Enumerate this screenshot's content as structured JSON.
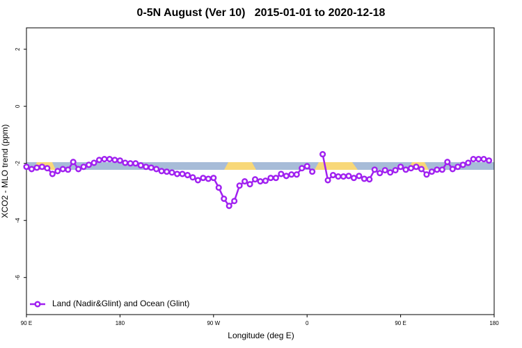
{
  "chart_data": {
    "type": "line",
    "title": "0-5N August (Ver 10)   2015-01-01 to 2020-12-18",
    "x_label": "Longitude (deg E)",
    "y_label": "XCO2 - MLO trend (ppm)",
    "xlim": [
      90,
      540
    ],
    "xticks": [
      {
        "value": 90,
        "label": "90 E"
      },
      180,
      {
        "value": 270,
        "label": "90 W"
      },
      {
        "value": 360,
        "label": "0"
      },
      {
        "value": 450,
        "label": "90 E"
      },
      {
        "value": 540,
        "label": "180"
      }
    ],
    "ylim": [
      -7.3,
      2.75
    ],
    "yticks": [
      2,
      0,
      -2,
      -4,
      -6
    ],
    "legend": "bottom-left",
    "x": [
      90,
      95,
      100,
      105,
      110,
      115,
      120,
      125,
      130,
      135,
      140,
      145,
      150,
      155,
      160,
      165,
      170,
      175,
      180,
      185,
      190,
      195,
      200,
      205,
      210,
      215,
      220,
      225,
      230,
      235,
      240,
      245,
      250,
      255,
      260,
      265,
      270,
      275,
      280,
      285,
      290,
      295,
      300,
      305,
      310,
      315,
      320,
      325,
      330,
      335,
      340,
      345,
      350,
      355,
      360,
      365,
      370,
      375,
      380,
      385,
      390,
      395,
      400,
      405,
      410,
      415,
      420,
      425,
      430,
      435,
      440,
      445,
      450,
      455,
      460,
      465,
      470,
      475,
      480,
      485,
      490,
      495,
      500,
      505,
      510,
      515,
      520,
      525,
      530,
      535
    ],
    "series": [
      {
        "name": "Land (Nadir&Glint) and Ocean (Glint)",
        "color": "#a020f0",
        "values": [
          -2.12,
          -2.2,
          -2.15,
          -2.12,
          -2.17,
          -2.37,
          -2.27,
          -2.2,
          -2.22,
          -1.95,
          -2.2,
          -2.12,
          -2.05,
          -1.98,
          -1.88,
          -1.85,
          -1.85,
          -1.88,
          -1.9,
          -1.98,
          -2.0,
          -2.0,
          -2.07,
          -2.12,
          -2.15,
          -2.2,
          -2.27,
          -2.29,
          -2.32,
          -2.37,
          -2.37,
          -2.41,
          -2.49,
          -2.59,
          -2.51,
          -2.54,
          -2.51,
          -2.85,
          -3.24,
          -3.49,
          -3.32,
          -2.78,
          -2.63,
          -2.73,
          -2.56,
          -2.63,
          -2.61,
          -2.51,
          -2.51,
          -2.37,
          -2.44,
          -2.39,
          -2.39,
          -2.17,
          -2.1,
          -2.29,
          null,
          -1.68,
          -2.59,
          -2.41,
          -2.46,
          -2.46,
          -2.44,
          -2.51,
          -2.44,
          -2.54,
          -2.56,
          -2.22,
          -2.34,
          -2.24,
          -2.32,
          -2.24,
          -2.12,
          -2.22,
          -2.17,
          -2.12,
          -2.2,
          -2.39,
          -2.29,
          -2.22,
          -2.22,
          -1.95,
          -2.2,
          -2.12,
          -2.05,
          -1.98,
          -1.85,
          -1.85,
          -1.85,
          -1.9
        ]
      }
    ]
  }
}
